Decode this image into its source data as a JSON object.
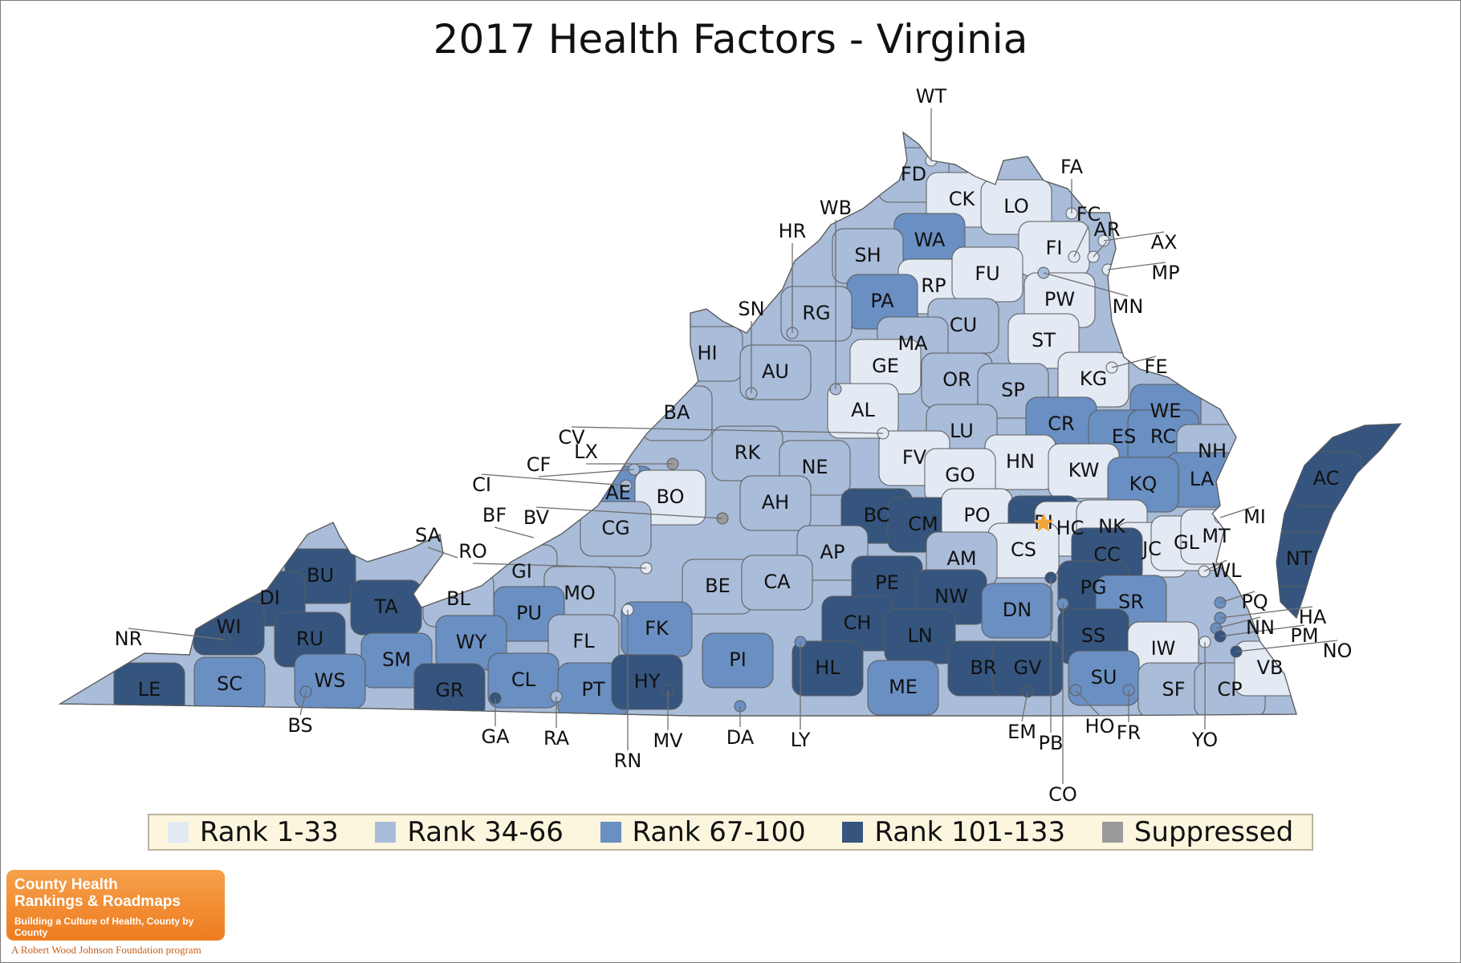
{
  "title": "2017 Health Factors - Virginia",
  "colors": {
    "rank_1_33": "#e3eaf4",
    "rank_34_66": "#a9bcd9",
    "rank_67_100": "#6a8fc2",
    "rank_101_133": "#35557f",
    "suppressed": "#9a9a9a",
    "border": "#5b5b5b",
    "star": "#f1a43a",
    "legend_bg": "#fcf6de"
  },
  "legend": [
    {
      "label": "Rank 1-33",
      "color_key": "rank_1_33"
    },
    {
      "label": "Rank 34-66",
      "color_key": "rank_34_66"
    },
    {
      "label": "Rank 67-100",
      "color_key": "rank_67_100"
    },
    {
      "label": "Rank 101-133",
      "color_key": "rank_101_133"
    },
    {
      "label": "Suppressed",
      "color_key": "suppressed"
    }
  ],
  "counties": [
    {
      "code": "WT",
      "tier": "rank_1_33"
    },
    {
      "code": "FD",
      "tier": "rank_34_66"
    },
    {
      "code": "CK",
      "tier": "rank_1_33"
    },
    {
      "code": "LO",
      "tier": "rank_1_33"
    },
    {
      "code": "FA",
      "tier": "rank_1_33"
    },
    {
      "code": "FC",
      "tier": "rank_1_33"
    },
    {
      "code": "AR",
      "tier": "rank_1_33"
    },
    {
      "code": "AX",
      "tier": "rank_1_33"
    },
    {
      "code": "FI",
      "tier": "rank_1_33"
    },
    {
      "code": "MP",
      "tier": "rank_1_33"
    },
    {
      "code": "MN",
      "tier": "rank_34_66"
    },
    {
      "code": "PW",
      "tier": "rank_1_33"
    },
    {
      "code": "WA",
      "tier": "rank_67_100"
    },
    {
      "code": "SH",
      "tier": "rank_34_66"
    },
    {
      "code": "WB",
      "tier": "rank_34_66"
    },
    {
      "code": "HR",
      "tier": "rank_34_66"
    },
    {
      "code": "RP",
      "tier": "rank_1_33"
    },
    {
      "code": "FU",
      "tier": "rank_1_33"
    },
    {
      "code": "PA",
      "tier": "rank_67_100"
    },
    {
      "code": "RG",
      "tier": "rank_34_66"
    },
    {
      "code": "SN",
      "tier": "rank_34_66"
    },
    {
      "code": "CU",
      "tier": "rank_34_66"
    },
    {
      "code": "MA",
      "tier": "rank_34_66"
    },
    {
      "code": "ST",
      "tier": "rank_1_33"
    },
    {
      "code": "HI",
      "tier": "rank_34_66"
    },
    {
      "code": "AU",
      "tier": "rank_34_66"
    },
    {
      "code": "GE",
      "tier": "rank_1_33"
    },
    {
      "code": "OR",
      "tier": "rank_34_66"
    },
    {
      "code": "SP",
      "tier": "rank_34_66"
    },
    {
      "code": "KG",
      "tier": "rank_1_33"
    },
    {
      "code": "FE",
      "tier": "rank_1_33"
    },
    {
      "code": "AL",
      "tier": "rank_1_33"
    },
    {
      "code": "BA",
      "tier": "rank_34_66"
    },
    {
      "code": "CV",
      "tier": "rank_1_33"
    },
    {
      "code": "LX",
      "tier": "suppressed"
    },
    {
      "code": "CF",
      "tier": "rank_34_66"
    },
    {
      "code": "CI",
      "tier": "rank_34_66"
    },
    {
      "code": "LU",
      "tier": "rank_34_66"
    },
    {
      "code": "CR",
      "tier": "rank_67_100"
    },
    {
      "code": "WE",
      "tier": "rank_67_100"
    },
    {
      "code": "ES",
      "tier": "rank_67_100"
    },
    {
      "code": "RC",
      "tier": "rank_67_100"
    },
    {
      "code": "NH",
      "tier": "rank_34_66"
    },
    {
      "code": "LA",
      "tier": "rank_67_100"
    },
    {
      "code": "AC",
      "tier": "rank_101_133"
    },
    {
      "code": "NT",
      "tier": "rank_101_133"
    },
    {
      "code": "RK",
      "tier": "rank_34_66"
    },
    {
      "code": "NE",
      "tier": "rank_34_66"
    },
    {
      "code": "FV",
      "tier": "rank_1_33"
    },
    {
      "code": "HN",
      "tier": "rank_1_33"
    },
    {
      "code": "KW",
      "tier": "rank_1_33"
    },
    {
      "code": "KQ",
      "tier": "rank_67_100"
    },
    {
      "code": "AE",
      "tier": "rank_67_100"
    },
    {
      "code": "BO",
      "tier": "rank_1_33"
    },
    {
      "code": "AH",
      "tier": "rank_34_66"
    },
    {
      "code": "GO",
      "tier": "rank_1_33"
    },
    {
      "code": "BC",
      "tier": "rank_101_133"
    },
    {
      "code": "CM",
      "tier": "rank_101_133"
    },
    {
      "code": "PO",
      "tier": "rank_1_33"
    },
    {
      "code": "RI",
      "tier": "rank_101_133"
    },
    {
      "code": "HC",
      "tier": "rank_1_33"
    },
    {
      "code": "NK",
      "tier": "rank_1_33"
    },
    {
      "code": "MI",
      "tier": "rank_1_33"
    },
    {
      "code": "BF",
      "tier": "rank_34_66"
    },
    {
      "code": "BV",
      "tier": "suppressed"
    },
    {
      "code": "SA",
      "tier": "rank_34_66"
    },
    {
      "code": "CG",
      "tier": "rank_34_66"
    },
    {
      "code": "RO",
      "tier": "rank_1_33"
    },
    {
      "code": "GI",
      "tier": "rank_34_66"
    },
    {
      "code": "AP",
      "tier": "rank_34_66"
    },
    {
      "code": "AM",
      "tier": "rank_34_66"
    },
    {
      "code": "CS",
      "tier": "rank_1_33"
    },
    {
      "code": "JC",
      "tier": "rank_1_33"
    },
    {
      "code": "GL",
      "tier": "rank_1_33"
    },
    {
      "code": "MT",
      "tier": "rank_1_33"
    },
    {
      "code": "WL",
      "tier": "rank_1_33"
    },
    {
      "code": "CC",
      "tier": "rank_101_133"
    },
    {
      "code": "BU",
      "tier": "rank_101_133"
    },
    {
      "code": "DI",
      "tier": "rank_101_133"
    },
    {
      "code": "TA",
      "tier": "rank_101_133"
    },
    {
      "code": "BL",
      "tier": "rank_34_66"
    },
    {
      "code": "MO",
      "tier": "rank_34_66"
    },
    {
      "code": "PU",
      "tier": "rank_67_100"
    },
    {
      "code": "BE",
      "tier": "rank_34_66"
    },
    {
      "code": "CA",
      "tier": "rank_34_66"
    },
    {
      "code": "PE",
      "tier": "rank_101_133"
    },
    {
      "code": "NW",
      "tier": "rank_101_133"
    },
    {
      "code": "DN",
      "tier": "rank_67_100"
    },
    {
      "code": "PG",
      "tier": "rank_101_133"
    },
    {
      "code": "SR",
      "tier": "rank_67_100"
    },
    {
      "code": "PQ",
      "tier": "rank_67_100"
    },
    {
      "code": "HA",
      "tier": "rank_67_100"
    },
    {
      "code": "NR",
      "tier": "rank_101_133"
    },
    {
      "code": "WI",
      "tier": "rank_101_133"
    },
    {
      "code": "RU",
      "tier": "rank_101_133"
    },
    {
      "code": "WY",
      "tier": "rank_67_100"
    },
    {
      "code": "FL",
      "tier": "rank_34_66"
    },
    {
      "code": "FK",
      "tier": "rank_67_100"
    },
    {
      "code": "CH",
      "tier": "rank_101_133"
    },
    {
      "code": "LN",
      "tier": "rank_101_133"
    },
    {
      "code": "SS",
      "tier": "rank_101_133"
    },
    {
      "code": "IW",
      "tier": "rank_1_33"
    },
    {
      "code": "NN",
      "tier": "rank_67_100"
    },
    {
      "code": "PM",
      "tier": "rank_101_133"
    },
    {
      "code": "NO",
      "tier": "rank_101_133"
    },
    {
      "code": "LE",
      "tier": "rank_101_133"
    },
    {
      "code": "SC",
      "tier": "rank_67_100"
    },
    {
      "code": "SM",
      "tier": "rank_67_100"
    },
    {
      "code": "WS",
      "tier": "rank_67_100"
    },
    {
      "code": "GR",
      "tier": "rank_101_133"
    },
    {
      "code": "CL",
      "tier": "rank_67_100"
    },
    {
      "code": "PT",
      "tier": "rank_67_100"
    },
    {
      "code": "HY",
      "tier": "rank_101_133"
    },
    {
      "code": "PI",
      "tier": "rank_67_100"
    },
    {
      "code": "HL",
      "tier": "rank_101_133"
    },
    {
      "code": "ME",
      "tier": "rank_67_100"
    },
    {
      "code": "BR",
      "tier": "rank_101_133"
    },
    {
      "code": "GV",
      "tier": "rank_101_133"
    },
    {
      "code": "SU",
      "tier": "rank_67_100"
    },
    {
      "code": "SF",
      "tier": "rank_34_66"
    },
    {
      "code": "CP",
      "tier": "rank_34_66"
    },
    {
      "code": "VB",
      "tier": "rank_1_33"
    },
    {
      "code": "BS",
      "tier": "rank_67_100"
    },
    {
      "code": "GA",
      "tier": "rank_101_133"
    },
    {
      "code": "RA",
      "tier": "rank_34_66"
    },
    {
      "code": "RN",
      "tier": "rank_1_33"
    },
    {
      "code": "MV",
      "tier": "rank_101_133"
    },
    {
      "code": "DA",
      "tier": "rank_67_100"
    },
    {
      "code": "LY",
      "tier": "rank_67_100"
    },
    {
      "code": "EM",
      "tier": "rank_101_133"
    },
    {
      "code": "PB",
      "tier": "rank_101_133"
    },
    {
      "code": "HO",
      "tier": "rank_67_100"
    },
    {
      "code": "FR",
      "tier": "rank_67_100"
    },
    {
      "code": "YO",
      "tier": "rank_1_33"
    },
    {
      "code": "CO",
      "tier": "rank_67_100"
    }
  ],
  "star_marker": {
    "county": "RI",
    "icon": "star-icon"
  },
  "logo": {
    "line1": "County Health",
    "line2": "Rankings & Roadmaps",
    "tagline": "Building a Culture of Health, County by County",
    "foot": "A Robert Wood Johnson Foundation program"
  }
}
